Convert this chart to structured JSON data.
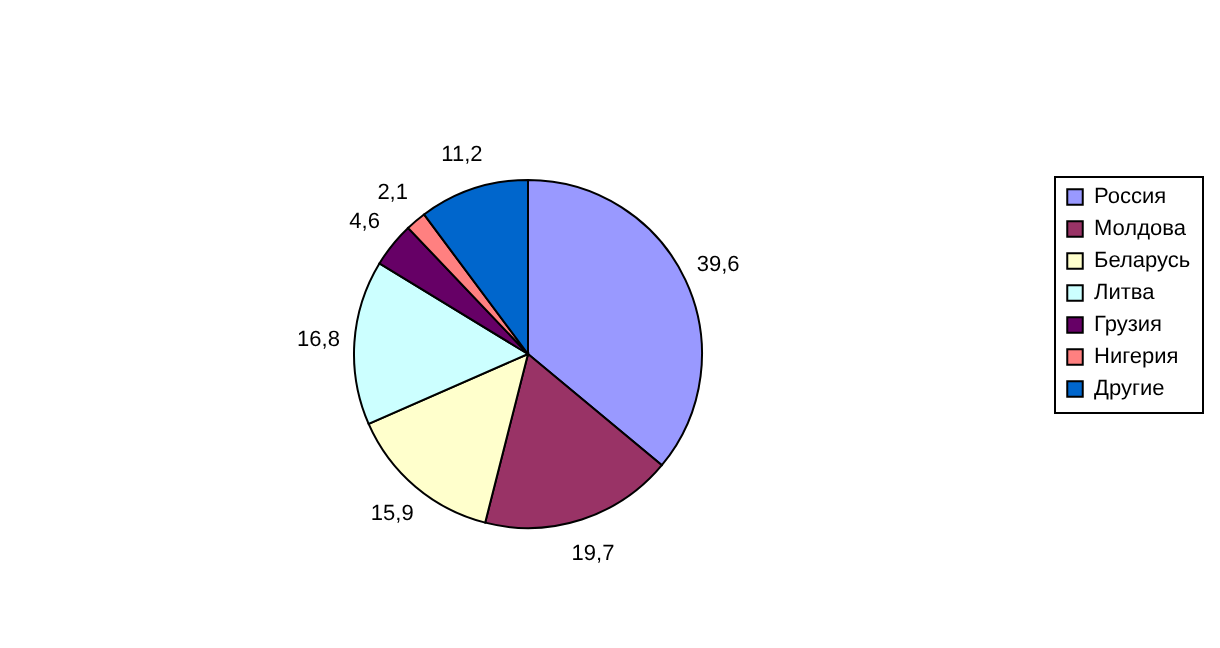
{
  "chart_data": {
    "type": "pie",
    "categories": [
      "Россия",
      "Молдова",
      "Беларусь",
      "Литва",
      "Грузия",
      "Нигерия",
      "Другие"
    ],
    "values": [
      39.6,
      19.7,
      15.9,
      16.8,
      4.6,
      2.1,
      11.2
    ],
    "colors": [
      "#9999ff",
      "#993366",
      "#ffffcc",
      "#ccffff",
      "#660066",
      "#ff8080",
      "#0066cc"
    ],
    "value_labels": [
      "39,6",
      "19,7",
      "15,9",
      "16,8",
      "4,6",
      "2,1",
      "11,2"
    ],
    "legend": "right"
  }
}
